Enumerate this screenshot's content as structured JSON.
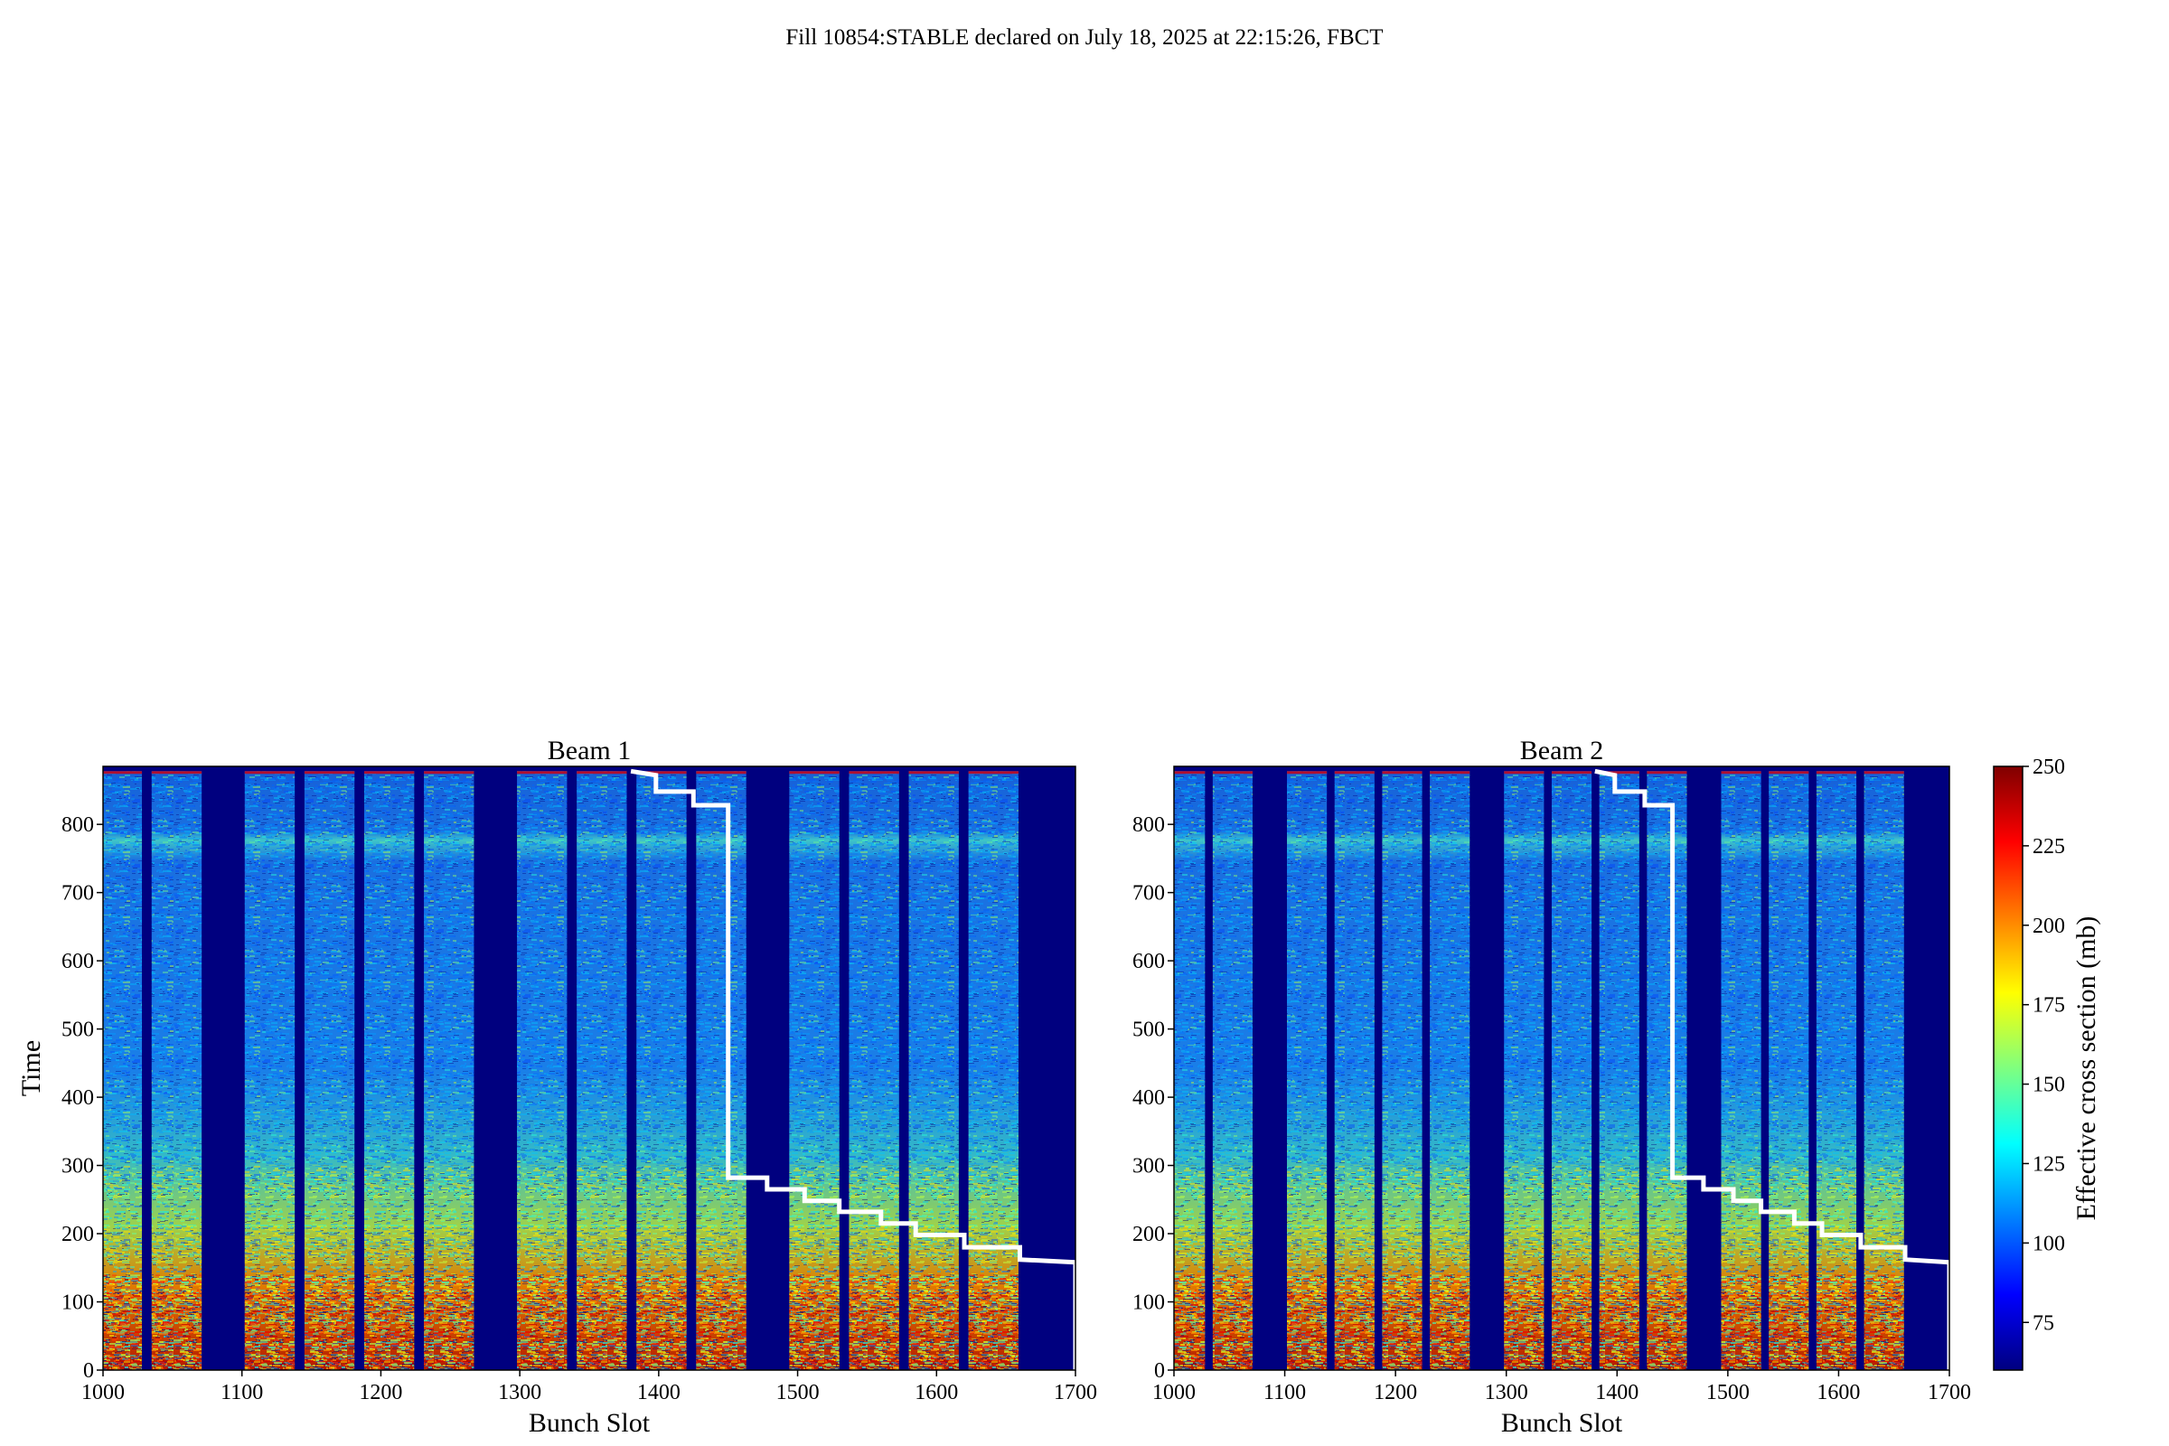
{
  "suptitle": "Fill 10854:STABLE declared on July 18, 2025 at 22:15:26, FBCT",
  "colorbar": {
    "label": "Effective cross section (mb)",
    "min": 60,
    "max": 250,
    "ticks": [
      75,
      100,
      125,
      150,
      175,
      200,
      225,
      250
    ],
    "colormap": "jet",
    "colors": [
      "#00007f",
      "#0000ff",
      "#007fff",
      "#00ffff",
      "#7fff7f",
      "#ffff00",
      "#ff7f00",
      "#ff0000",
      "#7f0000"
    ]
  },
  "chart_data": [
    {
      "type": "heatmap",
      "title": "Beam 1",
      "xlabel": "Bunch Slot",
      "ylabel": "Time",
      "xlim": [
        1000,
        1700
      ],
      "ylim": [
        0,
        885
      ],
      "xticks": [
        1000,
        1100,
        1200,
        1300,
        1400,
        1500,
        1600,
        1700
      ],
      "yticks": [
        0,
        100,
        200,
        300,
        400,
        500,
        600,
        700,
        800
      ],
      "filled_slot_ranges": [
        [
          1000,
          1028
        ],
        [
          1035,
          1071
        ],
        [
          1102,
          1138
        ],
        [
          1145,
          1181
        ],
        [
          1188,
          1224
        ],
        [
          1231,
          1267
        ],
        [
          1298,
          1334
        ],
        [
          1341,
          1377
        ],
        [
          1384,
          1420
        ],
        [
          1427,
          1463
        ],
        [
          1494,
          1530
        ],
        [
          1537,
          1573
        ],
        [
          1580,
          1616
        ],
        [
          1623,
          1659
        ]
      ],
      "overlay_line": {
        "color": "#ffffff",
        "points": [
          [
            1380,
            878
          ],
          [
            1398,
            872
          ],
          [
            1398,
            848
          ],
          [
            1425,
            848
          ],
          [
            1425,
            828
          ],
          [
            1450,
            828
          ],
          [
            1450,
            282
          ],
          [
            1478,
            282
          ],
          [
            1478,
            265
          ],
          [
            1505,
            265
          ],
          [
            1505,
            248
          ],
          [
            1530,
            248
          ],
          [
            1530,
            232
          ],
          [
            1560,
            232
          ],
          [
            1560,
            215
          ],
          [
            1585,
            215
          ],
          [
            1585,
            198
          ],
          [
            1620,
            198
          ],
          [
            1620,
            180
          ],
          [
            1660,
            180
          ],
          [
            1660,
            162
          ],
          [
            1700,
            158
          ],
          [
            1700,
            0
          ]
        ]
      }
    },
    {
      "type": "heatmap",
      "title": "Beam 2",
      "xlabel": "Bunch Slot",
      "ylabel": "",
      "xlim": [
        1000,
        1700
      ],
      "ylim": [
        0,
        885
      ],
      "xticks": [
        1000,
        1100,
        1200,
        1300,
        1400,
        1500,
        1600,
        1700
      ],
      "yticks": [
        0,
        100,
        200,
        300,
        400,
        500,
        600,
        700,
        800
      ],
      "filled_slot_ranges": [
        [
          1000,
          1028
        ],
        [
          1035,
          1071
        ],
        [
          1102,
          1138
        ],
        [
          1145,
          1181
        ],
        [
          1188,
          1224
        ],
        [
          1231,
          1267
        ],
        [
          1298,
          1334
        ],
        [
          1341,
          1377
        ],
        [
          1384,
          1420
        ],
        [
          1427,
          1463
        ],
        [
          1494,
          1530
        ],
        [
          1537,
          1573
        ],
        [
          1580,
          1616
        ],
        [
          1623,
          1659
        ]
      ],
      "overlay_line": {
        "color": "#ffffff",
        "points": [
          [
            1380,
            878
          ],
          [
            1398,
            872
          ],
          [
            1398,
            848
          ],
          [
            1425,
            848
          ],
          [
            1425,
            828
          ],
          [
            1450,
            828
          ],
          [
            1450,
            282
          ],
          [
            1478,
            282
          ],
          [
            1478,
            265
          ],
          [
            1505,
            265
          ],
          [
            1505,
            248
          ],
          [
            1530,
            248
          ],
          [
            1530,
            232
          ],
          [
            1560,
            232
          ],
          [
            1560,
            215
          ],
          [
            1585,
            215
          ],
          [
            1585,
            198
          ],
          [
            1620,
            198
          ],
          [
            1620,
            180
          ],
          [
            1660,
            180
          ],
          [
            1660,
            162
          ],
          [
            1700,
            158
          ],
          [
            1700,
            0
          ]
        ]
      }
    }
  ]
}
